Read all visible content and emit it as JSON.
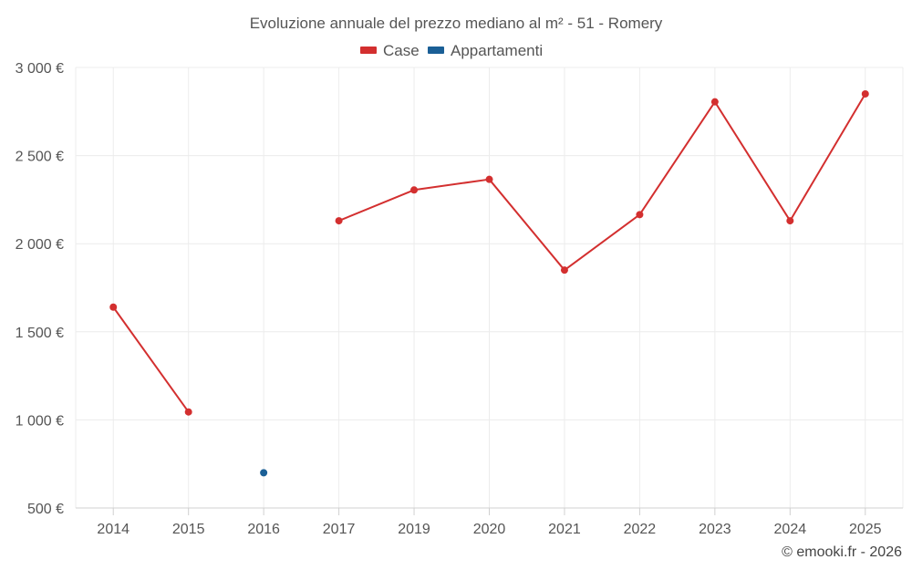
{
  "chart_data": {
    "type": "line",
    "title": "Evoluzione annuale del prezzo mediano al m² - 51 - Romery",
    "categories": [
      "2014",
      "2015",
      "2016",
      "2017",
      "2019",
      "2020",
      "2021",
      "2022",
      "2023",
      "2024",
      "2025"
    ],
    "series": [
      {
        "name": "Case",
        "color": "#d32f2f",
        "values": [
          1640,
          1045,
          null,
          2130,
          2305,
          2365,
          1850,
          2165,
          2805,
          2130,
          2850
        ]
      },
      {
        "name": "Appartamenti",
        "color": "#1a5f96",
        "values": [
          null,
          null,
          700,
          null,
          null,
          null,
          null,
          null,
          null,
          null,
          null
        ]
      }
    ],
    "ylim": [
      500,
      3000
    ],
    "yticks": [
      500,
      1000,
      1500,
      2000,
      2500,
      3000
    ],
    "ytick_labels": [
      "500 €",
      "1 000 €",
      "1 500 €",
      "2 000 €",
      "2 500 €",
      "3 000 €"
    ],
    "xlabel": "",
    "ylabel": "",
    "grid": true,
    "legend_position": "top-center"
  },
  "credit": "© emooki.fr - 2026"
}
